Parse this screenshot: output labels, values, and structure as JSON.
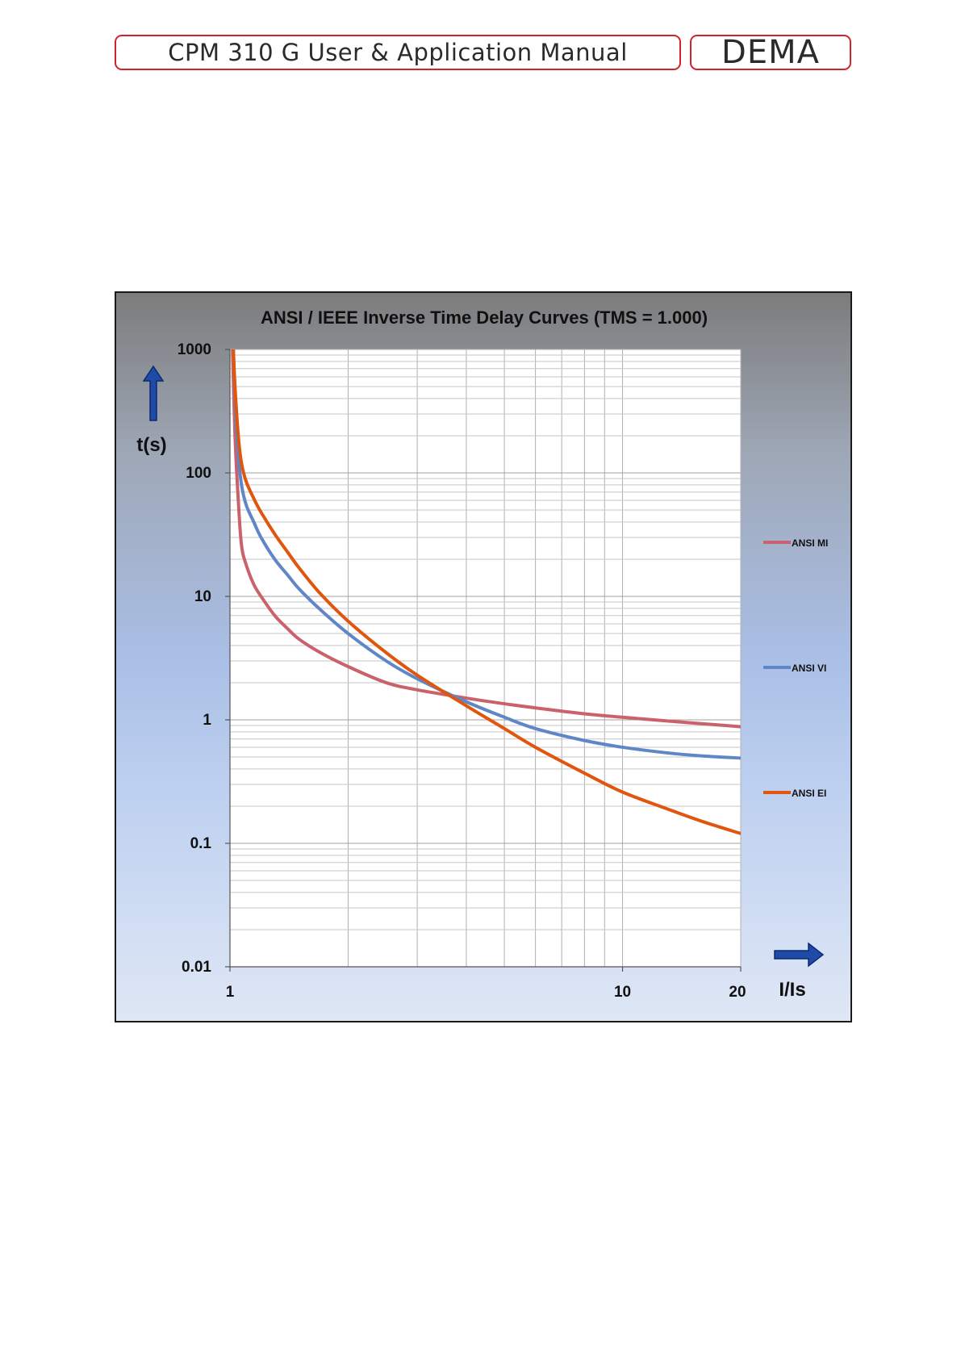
{
  "header": {
    "title": "CPM 310 G User & Application Manual",
    "brand": "DEMA"
  },
  "chart_data": {
    "type": "line",
    "title": "ANSI / IEEE Inverse Time Delay Curves (TMS = 1.000)",
    "xlabel": "I/Is",
    "ylabel": "t(s)",
    "x_scale": "log",
    "y_scale": "log",
    "xlim": [
      1,
      20
    ],
    "ylim": [
      0.01,
      1000
    ],
    "x_ticks": [
      "1",
      "10",
      "20"
    ],
    "y_ticks": [
      "1000",
      "100",
      "10",
      "1",
      "0.1",
      "0.01"
    ],
    "grid": true,
    "legend": "right",
    "series": [
      {
        "name": "ANSI MI",
        "color": "#c9626a",
        "x": [
          1.015,
          1.03,
          1.05,
          1.07,
          1.1,
          1.15,
          1.2,
          1.3,
          1.4,
          1.5,
          1.7,
          2,
          2.5,
          3,
          4,
          5,
          6,
          8,
          10,
          13,
          16,
          20
        ],
        "y": [
          1000,
          200,
          60,
          26,
          18,
          12.5,
          10,
          7,
          5.5,
          4.5,
          3.5,
          2.7,
          2.0,
          1.75,
          1.5,
          1.35,
          1.25,
          1.12,
          1.05,
          0.98,
          0.93,
          0.88
        ]
      },
      {
        "name": "ANSI VI",
        "color": "#5f87c8",
        "x": [
          1.02,
          1.035,
          1.05,
          1.07,
          1.1,
          1.15,
          1.2,
          1.3,
          1.4,
          1.5,
          1.7,
          2,
          2.5,
          3,
          4,
          5,
          6,
          8,
          10,
          13,
          16,
          20
        ],
        "y": [
          1000,
          300,
          140,
          80,
          55,
          40,
          30,
          20,
          15,
          11.5,
          7.8,
          5.0,
          3.0,
          2.15,
          1.4,
          1.05,
          0.85,
          0.68,
          0.6,
          0.54,
          0.51,
          0.49
        ]
      },
      {
        "name": "ANSI EI",
        "color": "#e0560f",
        "x": [
          1.02,
          1.03,
          1.05,
          1.07,
          1.1,
          1.15,
          1.2,
          1.3,
          1.4,
          1.5,
          1.7,
          2,
          2.5,
          3,
          4,
          5,
          6,
          8,
          10,
          13,
          16,
          20
        ],
        "y": [
          1000,
          500,
          200,
          120,
          85,
          62,
          48,
          32,
          23,
          17,
          10.5,
          6.3,
          3.5,
          2.3,
          1.3,
          0.85,
          0.6,
          0.37,
          0.26,
          0.19,
          0.15,
          0.12
        ]
      }
    ]
  }
}
